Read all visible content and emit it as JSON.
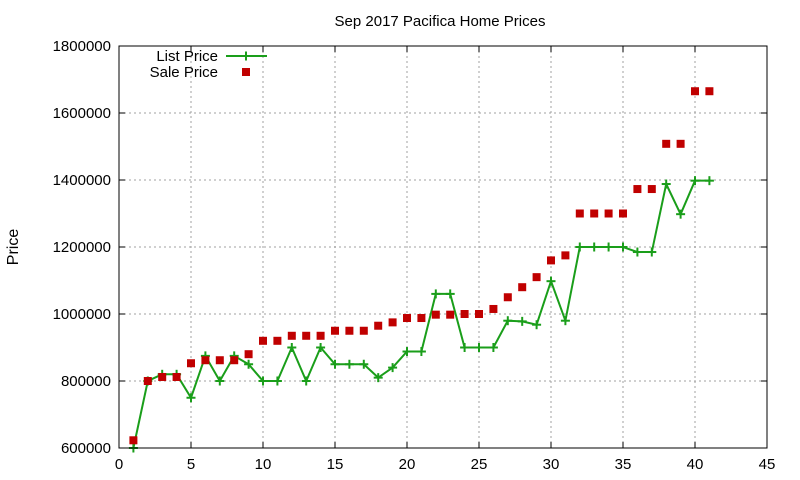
{
  "chart_data": {
    "type": "line",
    "title": "Sep 2017 Pacifica Home Prices",
    "xlabel": "",
    "ylabel": "Price",
    "xlim": [
      0,
      45
    ],
    "ylim": [
      600000,
      1800000
    ],
    "x_ticks": [
      0,
      5,
      10,
      15,
      20,
      25,
      30,
      35,
      40,
      45
    ],
    "y_ticks": [
      600000,
      800000,
      1000000,
      1200000,
      1400000,
      1600000,
      1800000
    ],
    "grid": true,
    "legend_position": "top-left",
    "x": [
      1,
      2,
      3,
      4,
      5,
      6,
      7,
      8,
      9,
      10,
      11,
      12,
      13,
      14,
      15,
      16,
      17,
      18,
      19,
      20,
      21,
      22,
      23,
      24,
      25,
      26,
      27,
      28,
      29,
      30,
      31,
      32,
      33,
      34,
      35,
      36,
      37,
      38,
      39,
      40,
      41
    ],
    "series": [
      {
        "name": "List Price",
        "style": "linespoints",
        "color": "#1a9e1a",
        "values": [
          600000,
          800000,
          820000,
          820000,
          750000,
          875000,
          800000,
          875000,
          850000,
          800000,
          800000,
          900000,
          800000,
          900000,
          850000,
          850000,
          850000,
          810000,
          840000,
          888000,
          888000,
          1060000,
          1060000,
          900000,
          900000,
          900000,
          980000,
          978000,
          968000,
          1098000,
          980000,
          1200000,
          1200000,
          1200000,
          1200000,
          1185000,
          1185000,
          1388000,
          1298000,
          1398000,
          1398000
        ]
      },
      {
        "name": "Sale Price",
        "style": "points",
        "color": "#c00000",
        "values": [
          623000,
          800000,
          812000,
          812000,
          853000,
          862000,
          862000,
          862000,
          880000,
          920000,
          920000,
          935000,
          935000,
          935000,
          950000,
          950000,
          950000,
          965000,
          975000,
          988000,
          988000,
          998000,
          998000,
          1000000,
          1000000,
          1015000,
          1050000,
          1080000,
          1110000,
          1160000,
          1175000,
          1300000,
          1300000,
          1300000,
          1300000,
          1373000,
          1373000,
          1508000,
          1508000,
          1665000,
          1665000
        ]
      }
    ]
  }
}
